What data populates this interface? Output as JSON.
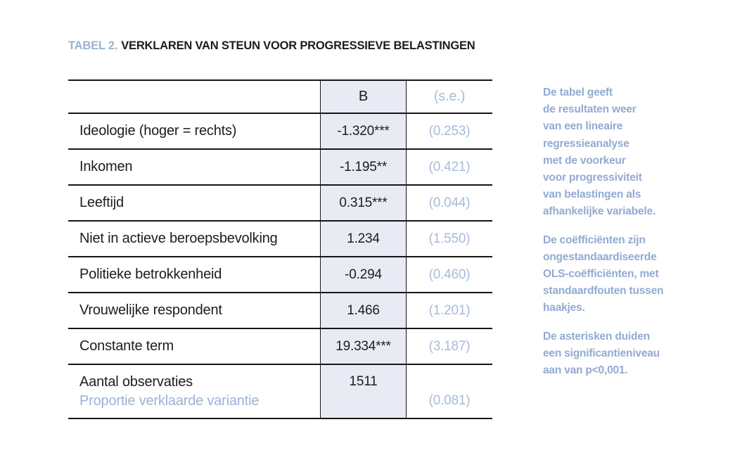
{
  "title": {
    "label": "TABEL 2.",
    "text": "VERKLAREN VAN STEUN VOOR PROGRESSIEVE BELASTINGEN"
  },
  "table": {
    "header": {
      "label": "",
      "b": "B",
      "se": "(s.e.)"
    },
    "rows": [
      {
        "label": "Ideologie (hoger = rechts)",
        "b": "-1.320***",
        "se": "(0.253)"
      },
      {
        "label": "Inkomen",
        "b": "-1.195**",
        "se": "(0.421)"
      },
      {
        "label": "Leeftijd",
        "b": "0.315***",
        "se": "(0.044)"
      },
      {
        "label": "Niet in actieve beroepsbevolking",
        "b": "1.234",
        "se": "(1.550)"
      },
      {
        "label": "Politieke betrokkenheid",
        "b": "-0.294",
        "se": "(0.460)"
      },
      {
        "label": "Vrouwelijke respondent",
        "b": "1.466",
        "se": "(1.201)"
      },
      {
        "label": "Constante term",
        "b": "19.334***",
        "se": "(3.187)"
      }
    ],
    "footer": {
      "label_1": "Aantal observaties",
      "label_2": "Proportie verklaarde variantie",
      "b": "1511",
      "se": "(0.081)"
    }
  },
  "notes": [
    "De tabel geeft\nde resultaten weer\nvan een lineaire\nregressieanalyse\nmet de voorkeur\nvoor progressiviteit\nvan belastingen als\nafhankelijke variabele.",
    "De coëfficiënten zijn\nongestandaardiseerde\nOLS-coëfficiënten, met\nstandaardfouten tussen\nhaakjes.",
    "De asterisken duiden\neen significantieniveau\naan van p<0,001."
  ],
  "colors": {
    "accent_blue": "#9db3d6",
    "table_se_blue": "#a8bbd9",
    "notes_blue": "#93aad2",
    "cell_background": "#e8ebf4",
    "text_dark": "#1d1d1f",
    "rule_black": "#161616"
  }
}
